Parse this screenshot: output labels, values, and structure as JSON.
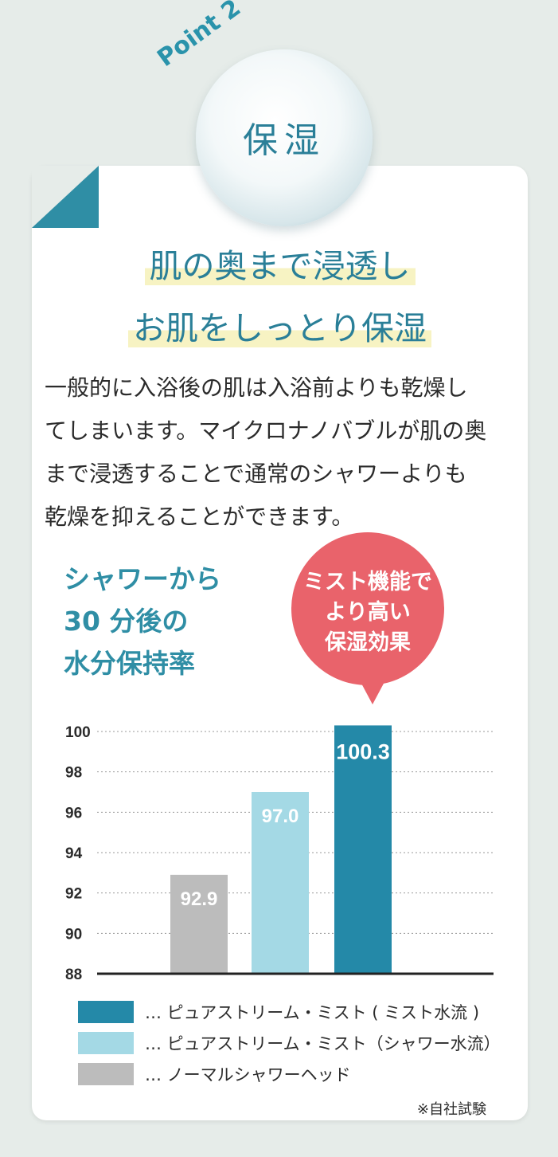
{
  "badge": {
    "point": "Point 2",
    "title": "保湿"
  },
  "headline": {
    "line1": "肌の奥まで浸透し",
    "line2": "お肌をしっとり保湿"
  },
  "body_lines": [
    "一般的に入浴後の肌は入浴前よりも乾燥し",
    "てしまいます。マイクロナノバブルが肌の奥",
    "まで浸透することで通常のシャワーよりも",
    "乾燥を抑えることができます。"
  ],
  "callout_lines": [
    "ミスト機能で",
    "より高い",
    "保湿効果"
  ],
  "footnote": "※自社試験",
  "colors": {
    "mist_mist": "#2489a8",
    "mist_shower": "#a4d9e5",
    "normal": "#bcbcbc",
    "accent": "#2f8ea5",
    "callout": "#e9636b"
  },
  "chart_data": {
    "type": "bar",
    "title_lines": [
      "シャワーから",
      "30 分後の",
      "水分保持率"
    ],
    "ylim": [
      88,
      100
    ],
    "yticks": [
      88,
      90,
      92,
      94,
      96,
      98,
      100
    ],
    "grid": true,
    "bars": [
      {
        "label": "ノーマルシャワーヘッド",
        "value": 92.9,
        "display": "92.9",
        "color": "#bcbcbc"
      },
      {
        "label": "ピュアストリーム・ミスト（シャワー水流）",
        "value": 97.0,
        "display": "97.0",
        "color": "#a4d9e5"
      },
      {
        "label": "ピュアストリーム・ミスト ( ミスト水流 )",
        "value": 100.3,
        "display": "100.3",
        "color": "#2489a8"
      }
    ],
    "legend": [
      {
        "label": "… ピュアストリーム・ミスト ( ミスト水流 )",
        "color": "#2489a8"
      },
      {
        "label": "… ピュアストリーム・ミスト（シャワー水流）",
        "color": "#a4d9e5"
      },
      {
        "label": "… ノーマルシャワーヘッド",
        "color": "#bcbcbc"
      }
    ]
  }
}
